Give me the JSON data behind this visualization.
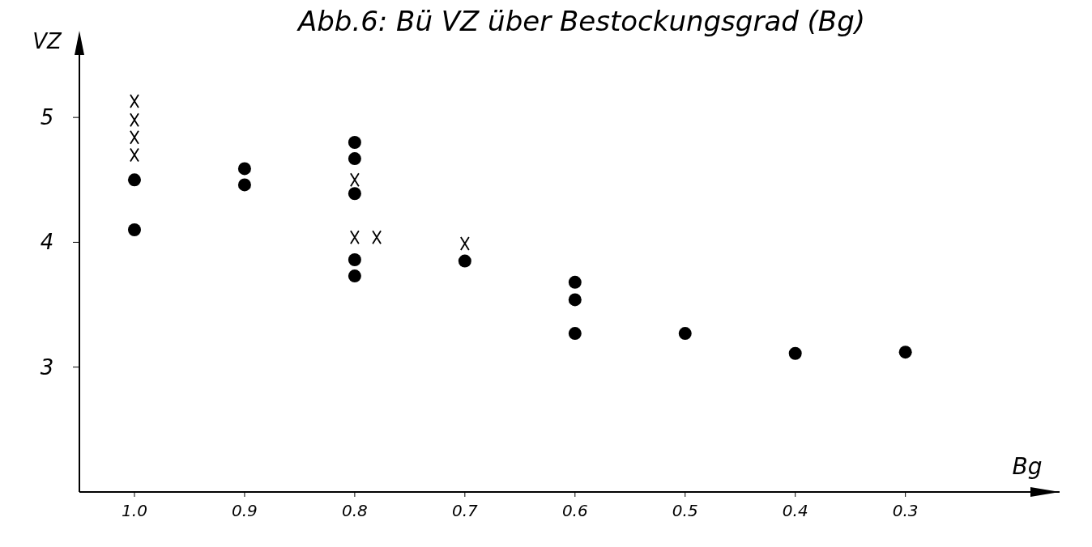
{
  "chart_data": {
    "type": "scatter",
    "title": "Abb.6: Bü VZ über Bestockungsgrad (Bg)",
    "xlabel": "Bg",
    "ylabel": "VZ",
    "xlim": [
      1.05,
      0.16
    ],
    "xticks": [
      {
        "value": 1,
        "label": "1.0"
      },
      0.9,
      0.8,
      0.7,
      0.6,
      0.5,
      0.4,
      0.3
    ],
    "ylim": [
      2,
      5.5
    ],
    "yticks": [
      3,
      4,
      5
    ],
    "grid": false,
    "series": [
      {
        "color": "#000000",
        "marker": "circle",
        "x": [
          1.0,
          1.0,
          0.9,
          0.9,
          0.8,
          0.8,
          0.8,
          0.8,
          0.8,
          0.7,
          0.6,
          0.6,
          0.6,
          0.5,
          0.4,
          0.3
        ],
        "values": [
          4.5,
          4.1,
          4.59,
          4.46,
          4.8,
          4.67,
          4.39,
          3.86,
          3.73,
          3.85,
          3.68,
          3.54,
          3.27,
          3.27,
          3.11,
          3.12
        ]
      },
      {
        "color": "#000000",
        "marker": "cross",
        "x": [
          1.0,
          1.0,
          1.0,
          1.0,
          0.8,
          0.8,
          0.78,
          0.7
        ],
        "values": [
          5.13,
          4.98,
          4.84,
          4.7,
          4.5,
          4.04,
          4.04,
          3.99
        ]
      }
    ]
  }
}
